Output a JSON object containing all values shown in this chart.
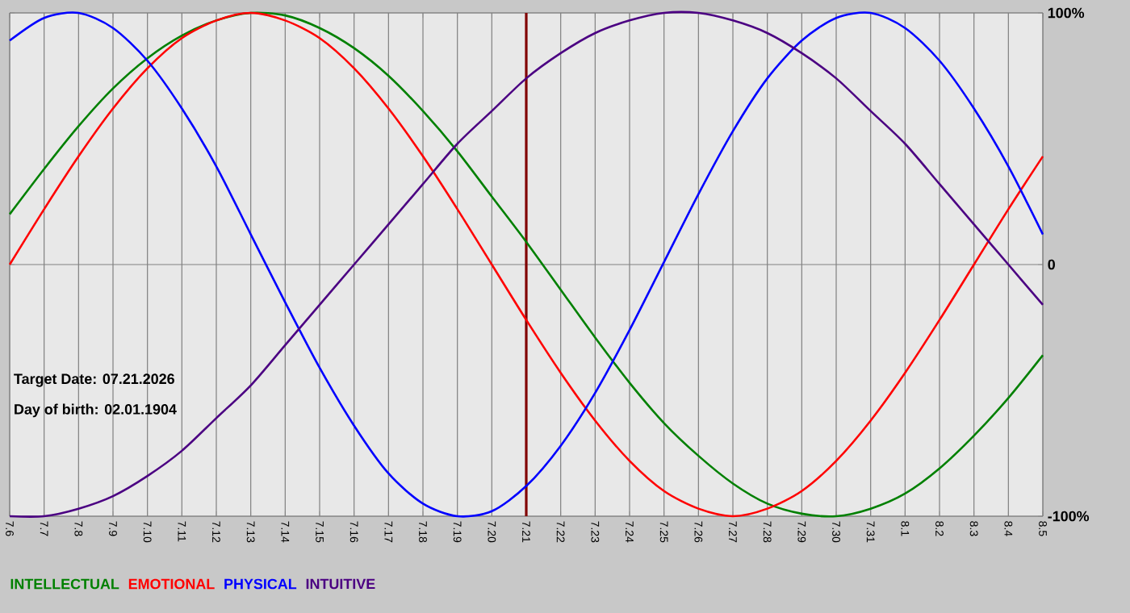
{
  "chart_data": {
    "type": "line",
    "categories": [
      "7.6",
      "7.7",
      "7.8",
      "7.9",
      "7.10",
      "7.11",
      "7.12",
      "7.13",
      "7.14",
      "7.15",
      "7.16",
      "7.17",
      "7.18",
      "7.19",
      "7.20",
      "7.21",
      "7.22",
      "7.23",
      "7.24",
      "7.25",
      "7.26",
      "7.27",
      "7.28",
      "7.29",
      "7.30",
      "7.31",
      "8.1",
      "8.2",
      "8.3",
      "8.4",
      "8.5"
    ],
    "series": [
      {
        "name": "INTELLECTUAL",
        "color": "#008000",
        "values": [
          20,
          38,
          55,
          70,
          82,
          91,
          97,
          100,
          99,
          94,
          86,
          75,
          61,
          45,
          27,
          9,
          -10,
          -29,
          -47,
          -63,
          -76,
          -87,
          -95,
          -99,
          -100,
          -97,
          -91,
          -81,
          -68,
          -53,
          -36
        ]
      },
      {
        "name": "EMOTIONAL",
        "color": "#ff0000",
        "values": [
          0,
          22,
          43,
          62,
          78,
          90,
          97,
          100,
          97,
          90,
          78,
          62,
          43,
          22,
          0,
          -22,
          -43,
          -62,
          -78,
          -90,
          -97,
          -100,
          -97,
          -90,
          -78,
          -62,
          -43,
          -22,
          0,
          22,
          43
        ]
      },
      {
        "name": "PHYSICAL",
        "color": "#0000ff",
        "values": [
          89,
          98,
          100,
          94,
          81,
          62,
          39,
          12,
          -15,
          -41,
          -64,
          -83,
          -95,
          -100,
          -98,
          -88,
          -72,
          -51,
          -26,
          1,
          28,
          53,
          74,
          89,
          98,
          100,
          94,
          81,
          62,
          39,
          12
        ]
      },
      {
        "name": "INTUITIVE",
        "color": "#4b0082",
        "values": [
          -100,
          -100,
          -97,
          -92,
          -84,
          -74,
          -61,
          -48,
          -32,
          -16,
          0,
          16,
          32,
          48,
          61,
          74,
          84,
          92,
          97,
          100,
          100,
          97,
          92,
          84,
          74,
          61,
          48,
          32,
          16,
          0,
          -16
        ]
      }
    ],
    "ylim": [
      -100,
      100
    ],
    "yticks": [
      {
        "value": 100,
        "label": "100%"
      },
      {
        "value": 0,
        "label": "0"
      },
      {
        "value": -100,
        "label": "-100%"
      }
    ],
    "grid": true,
    "legend": "bottom",
    "marker": "none",
    "line_style": "solid",
    "ref_lines": [
      {
        "axis": "x",
        "value": "7.21",
        "color": "#800000"
      }
    ],
    "annotations": [
      "Target Date: 07.21.2026",
      "Day of birth: 02.01.1904"
    ]
  }
}
